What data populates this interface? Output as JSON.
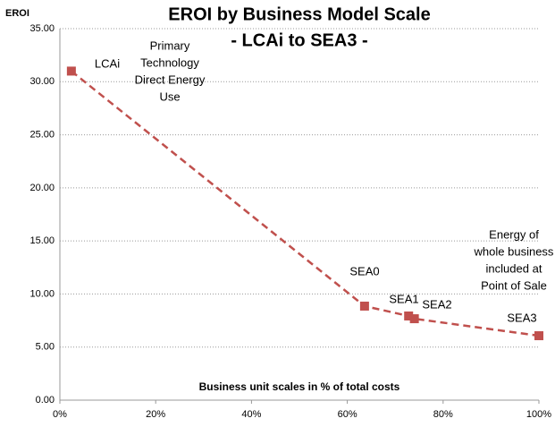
{
  "chart_data": {
    "type": "line",
    "title": "EROI by  Business Model Scale",
    "subtitle": "- LCAi to SEA3 -",
    "y_label": "EROI",
    "x_label": "Business unit scales in % of total costs",
    "x": [
      2.4,
      63.6,
      72.8,
      74,
      100
    ],
    "values": [
      31,
      8.86,
      7.93,
      7.67,
      6.07
    ],
    "point_labels": [
      "LCAi",
      "SEA0",
      "SEA1",
      "SEA2",
      "SEA3"
    ],
    "color": "#c0504d",
    "xlim": [
      0,
      100
    ],
    "xticks": [
      {
        "value": 0,
        "label": "0%"
      },
      {
        "value": 20,
        "label": "20%"
      },
      {
        "value": 40,
        "label": "40%"
      },
      {
        "value": 60,
        "label": "60%"
      },
      {
        "value": 80,
        "label": "80%"
      },
      {
        "value": 100,
        "label": "100%"
      }
    ],
    "ylim": [
      0,
      35
    ],
    "yticks": [
      {
        "value": 0,
        "label": "0.00"
      },
      {
        "value": 5,
        "label": "5.00"
      },
      {
        "value": 10,
        "label": "10.00"
      },
      {
        "value": 15,
        "label": "15.00"
      },
      {
        "value": 20,
        "label": "20.00"
      },
      {
        "value": 25,
        "label": "25.00"
      },
      {
        "value": 30,
        "label": "30.00"
      },
      {
        "value": 35,
        "label": "35.00"
      }
    ],
    "grid": true,
    "annotations": [
      {
        "lines": [
          "Primary",
          "Technology",
          "Direct Energy",
          "Use"
        ]
      },
      {
        "lines": [
          "Energy of",
          "whole business",
          "included at",
          "Point of Sale"
        ]
      }
    ]
  }
}
